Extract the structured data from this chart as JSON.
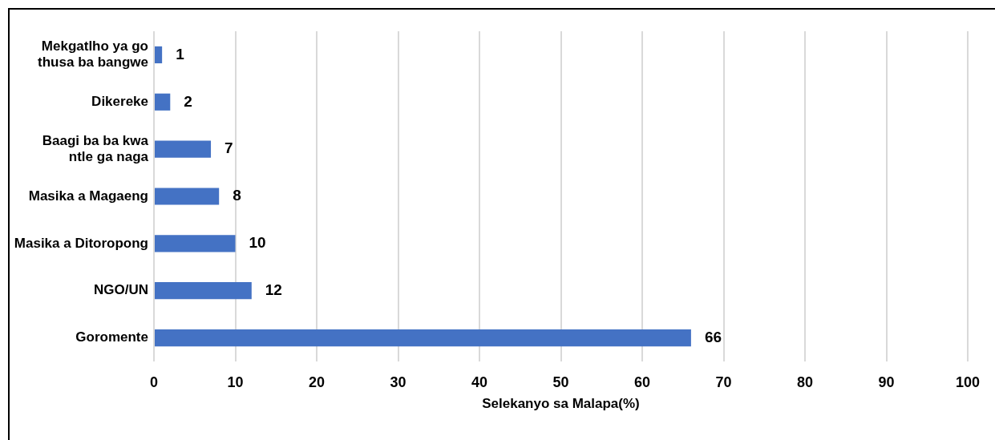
{
  "chart_data": {
    "type": "bar",
    "orientation": "horizontal",
    "categories": [
      "Mekgatlho ya go thusa ba bangwe",
      "Dikereke",
      "Baagi ba ba kwa ntle ga naga",
      "Masika a Magaeng",
      "Masika a Ditoropong",
      "NGO/UN",
      "Goromente"
    ],
    "values": [
      1,
      2,
      7,
      8,
      10,
      12,
      66
    ],
    "color": "#4472c4",
    "xlabel": "Selekanyo sa Malapa(%)",
    "xlim": [
      0,
      100
    ],
    "xticks": [
      0,
      10,
      20,
      30,
      40,
      50,
      60,
      70,
      80,
      90,
      100
    ],
    "grid": "x",
    "data_labels": true
  }
}
